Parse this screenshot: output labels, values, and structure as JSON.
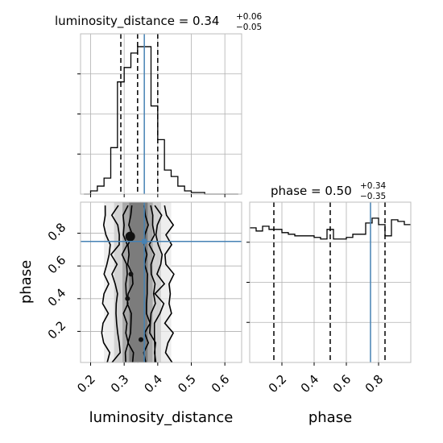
{
  "chart_data": {
    "type": "corner",
    "params": [
      "luminosity_distance",
      "phase"
    ],
    "truths": {
      "luminosity_distance": 0.36,
      "phase": 0.75
    },
    "grid": true,
    "panels": {
      "luminosity_distance_hist": {
        "type": "histogram",
        "title_prefix": "luminosity_distance = 0.34",
        "title_plus": "+0.06",
        "title_minus": "−0.05",
        "xlim": [
          0.17,
          0.65
        ],
        "ylim": [
          0,
          1.0
        ],
        "bins": [
          0.18,
          0.2,
          0.22,
          0.24,
          0.26,
          0.28,
          0.3,
          0.32,
          0.34,
          0.36,
          0.38,
          0.4,
          0.42,
          0.44,
          0.46,
          0.48,
          0.5,
          0.52,
          0.54,
          0.56,
          0.58,
          0.6,
          0.62,
          0.64
        ],
        "counts": [
          0.0,
          0.02,
          0.05,
          0.1,
          0.29,
          0.7,
          0.79,
          0.88,
          0.92,
          0.92,
          0.55,
          0.34,
          0.15,
          0.11,
          0.05,
          0.02,
          0.01,
          0.01,
          0.0,
          0.0,
          0.0,
          0.0,
          0.0
        ],
        "quantiles": [
          0.29,
          0.34,
          0.4
        ]
      },
      "phase_hist": {
        "type": "histogram",
        "title_prefix": "phase = 0.50",
        "title_plus": "+0.34",
        "title_minus": "−0.35",
        "xlim": [
          0.0,
          1.0
        ],
        "ylim": [
          0,
          1.0
        ],
        "bins": [
          0.0,
          0.04,
          0.08,
          0.12,
          0.16,
          0.2,
          0.24,
          0.28,
          0.32,
          0.36,
          0.4,
          0.44,
          0.48,
          0.52,
          0.56,
          0.6,
          0.64,
          0.68,
          0.72,
          0.76,
          0.8,
          0.84,
          0.88,
          0.92,
          0.96,
          1.0
        ],
        "counts": [
          0.84,
          0.82,
          0.85,
          0.83,
          0.83,
          0.81,
          0.8,
          0.79,
          0.79,
          0.79,
          0.78,
          0.77,
          0.83,
          0.77,
          0.77,
          0.78,
          0.8,
          0.8,
          0.87,
          0.9,
          0.86,
          0.79,
          0.89,
          0.88,
          0.86
        ],
        "quantiles": [
          0.15,
          0.5,
          0.84
        ]
      },
      "joint": {
        "type": "contour",
        "xlim": [
          0.17,
          0.65
        ],
        "ylim": [
          0.01,
          0.99
        ],
        "xlabel": "luminosity_distance",
        "ylabel": "phase"
      }
    },
    "ticks": {
      "luminosity_distance": [
        "0.2",
        "0.3",
        "0.4",
        "0.5",
        "0.6"
      ],
      "luminosity_distance_values": [
        0.2,
        0.3,
        0.4,
        0.5,
        0.6
      ],
      "phase": [
        "0.2",
        "0.4",
        "0.6",
        "0.8"
      ],
      "phase_values": [
        0.2,
        0.4,
        0.6,
        0.8
      ]
    },
    "colors": {
      "truth": "#4682b4",
      "line": "#000000",
      "grid": "#b0b0b0"
    },
    "bottom_labels": [
      "luminosity_distance",
      "phase"
    ]
  }
}
